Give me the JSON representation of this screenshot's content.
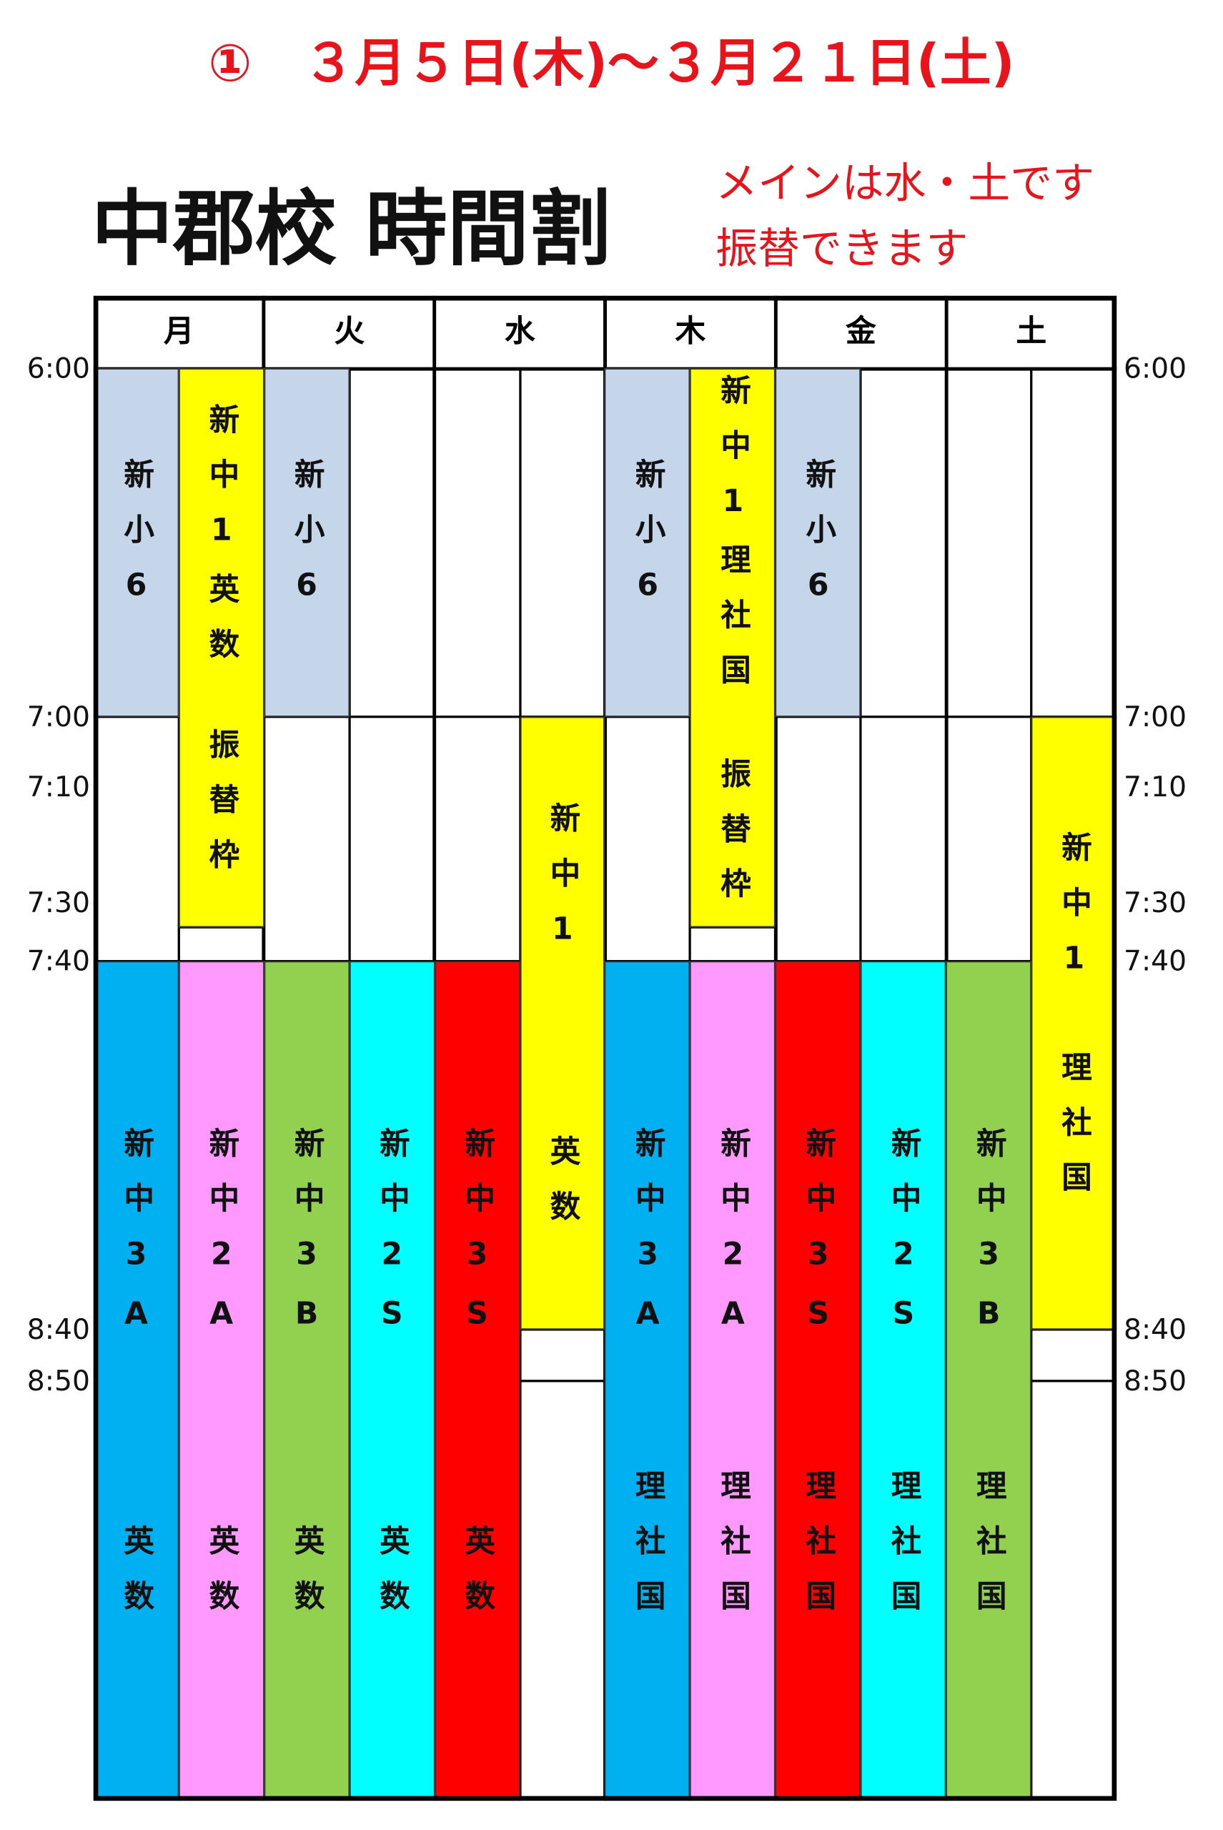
{
  "header": {
    "date": "①　３月５日(木)～３月２１日(土)",
    "title": "中郡校 時間割",
    "notes": [
      "メインは水・土です",
      "振替できます"
    ]
  },
  "timetable": {
    "days": [
      "月",
      "火",
      "水",
      "木",
      "金",
      "土"
    ],
    "times": [
      "6:00",
      "7:00",
      "7:10",
      "7:30",
      "7:40",
      "8:40",
      "8:50"
    ],
    "blocks": [
      {
        "color": "#c5d5ea",
        "text": [
          "新小6"
        ]
      },
      {
        "color": "#ffff00",
        "text": [
          "新中1英数",
          "振替枠"
        ]
      },
      {
        "color": "#00b0f0",
        "text": [
          "新中3A",
          "英数"
        ]
      },
      {
        "color": "#ff99ff",
        "text": [
          "新中2A",
          "英数"
        ]
      },
      {
        "color": "#c5d5ea",
        "text": [
          "新小6"
        ]
      },
      {
        "color": "#92d050",
        "text": [
          "新中3B",
          "英数"
        ]
      },
      {
        "color": "#00ffff",
        "text": [
          "新中2S",
          "英数"
        ]
      },
      {
        "color": "#ff0000",
        "text": [
          "新中3S",
          "英数"
        ]
      },
      {
        "color": "#ffff00",
        "text": [
          "新中1",
          "英数"
        ]
      },
      {
        "color": "#c5d5ea",
        "text": [
          "新小6"
        ]
      },
      {
        "color": "#ffff00",
        "text": [
          "新中1理社国",
          "振替枠"
        ]
      },
      {
        "color": "#00b0f0",
        "text": [
          "新中3A",
          "理社国"
        ]
      },
      {
        "color": "#ff99ff",
        "text": [
          "新中2A",
          "理社国"
        ]
      },
      {
        "color": "#c5d5ea",
        "text": [
          "新小6"
        ]
      },
      {
        "color": "#ff0000",
        "text": [
          "新中3S",
          "理社国"
        ]
      },
      {
        "color": "#00ffff",
        "text": [
          "新中2S",
          "理社国"
        ]
      },
      {
        "color": "#92d050",
        "text": [
          "新中3B",
          "理社国"
        ]
      },
      {
        "color": "#ffff00",
        "text": [
          "新中1",
          "理社国"
        ]
      }
    ]
  }
}
